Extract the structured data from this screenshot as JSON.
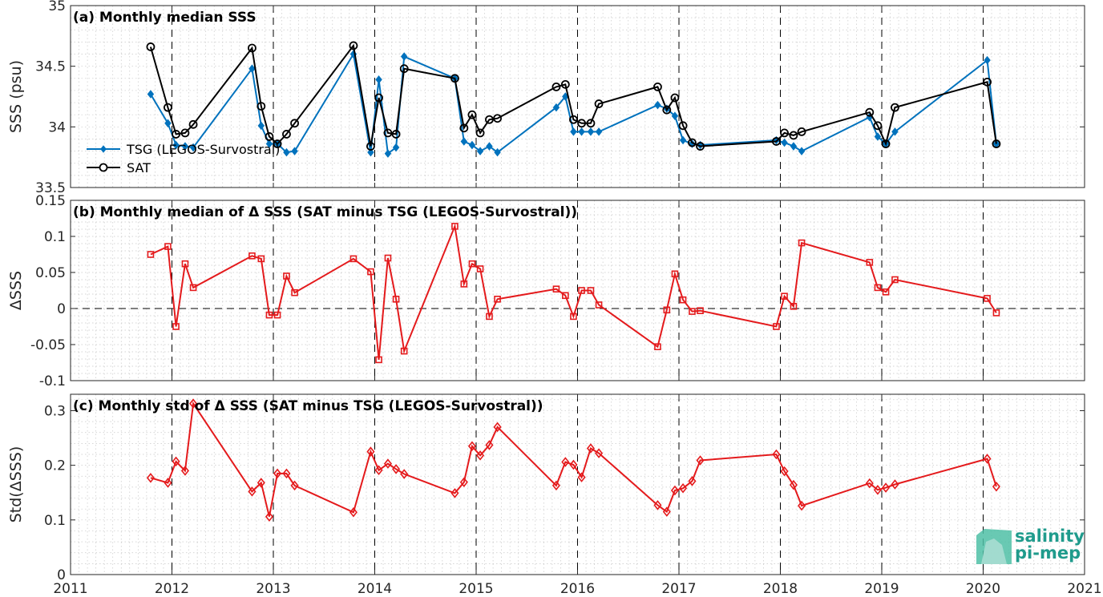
{
  "chart_data": [
    {
      "type": "line",
      "title": "(a) Monthly median SSS",
      "ylabel": "SSS (psu)",
      "xlim": [
        2011,
        2021
      ],
      "ylim": [
        33.5,
        35
      ],
      "yticks": [
        "33.5",
        "34",
        "34.5",
        "35"
      ],
      "xticks": [
        "2011",
        "2012",
        "2013",
        "2014",
        "2015",
        "2016",
        "2017",
        "2018",
        "2019",
        "2020",
        "2021"
      ],
      "legend": "bottom-left",
      "grid": true,
      "series": [
        {
          "name": "TSG (LEGOS-Survostral)",
          "color": "#0072bd",
          "marker": "diamond",
          "x": [
            2011.79,
            2011.96,
            2012.04,
            2012.13,
            2012.21,
            2012.79,
            2012.88,
            2012.96,
            2013.04,
            2013.13,
            2013.21,
            2013.79,
            2013.96,
            2014.04,
            2014.13,
            2014.21,
            2014.29,
            2014.79,
            2014.88,
            2014.96,
            2015.04,
            2015.13,
            2015.21,
            2015.79,
            2015.88,
            2015.96,
            2016.04,
            2016.13,
            2016.21,
            2016.79,
            2016.88,
            2016.96,
            2017.04,
            2017.13,
            2017.21,
            2017.96,
            2018.04,
            2018.13,
            2018.21,
            2018.88,
            2018.96,
            2019.04,
            2019.13,
            2020.04,
            2020.13
          ],
          "y": [
            34.27,
            34.03,
            33.85,
            33.84,
            33.83,
            34.48,
            34.01,
            33.86,
            33.86,
            33.79,
            33.8,
            34.6,
            33.79,
            34.39,
            33.78,
            33.83,
            34.58,
            34.4,
            33.88,
            33.85,
            33.8,
            33.84,
            33.79,
            34.16,
            34.25,
            33.96,
            33.96,
            33.96,
            33.96,
            34.18,
            34.15,
            34.09,
            33.89,
            33.86,
            33.85,
            33.89,
            33.87,
            33.84,
            33.8,
            34.08,
            33.92,
            33.86,
            33.96,
            34.55,
            33.86
          ]
        },
        {
          "name": "SAT",
          "color": "#000000",
          "marker": "circle",
          "x": [
            2011.79,
            2011.96,
            2012.04,
            2012.13,
            2012.21,
            2012.79,
            2012.88,
            2012.96,
            2013.04,
            2013.13,
            2013.21,
            2013.79,
            2013.96,
            2014.04,
            2014.13,
            2014.21,
            2014.29,
            2014.79,
            2014.88,
            2014.96,
            2015.04,
            2015.13,
            2015.21,
            2015.79,
            2015.88,
            2015.96,
            2016.04,
            2016.13,
            2016.21,
            2016.79,
            2016.88,
            2016.96,
            2017.04,
            2017.13,
            2017.21,
            2017.96,
            2018.04,
            2018.13,
            2018.21,
            2018.88,
            2018.96,
            2019.04,
            2019.13,
            2020.04,
            2020.13
          ],
          "y": [
            34.66,
            34.16,
            33.94,
            33.95,
            34.02,
            34.65,
            34.17,
            33.92,
            33.86,
            33.94,
            34.03,
            34.67,
            33.84,
            34.24,
            33.95,
            33.94,
            34.48,
            34.4,
            33.99,
            34.1,
            33.95,
            34.06,
            34.07,
            34.33,
            34.35,
            34.06,
            34.03,
            34.03,
            34.19,
            34.33,
            34.14,
            34.24,
            34.01,
            33.87,
            33.84,
            33.88,
            33.95,
            33.93,
            33.96,
            34.12,
            34.01,
            33.86,
            34.16,
            34.37,
            33.86
          ]
        }
      ]
    },
    {
      "type": "line",
      "title": "(b) Monthly median of Δ SSS (SAT minus TSG (LEGOS-Survostral))",
      "ylabel": "ΔSSS",
      "xlim": [
        2011,
        2021
      ],
      "ylim": [
        -0.1,
        0.15
      ],
      "yticks": [
        "-0.1",
        "-0.05",
        "0",
        "0.05",
        "0.1",
        "0.15"
      ],
      "xticks": [
        "2011",
        "2012",
        "2013",
        "2014",
        "2015",
        "2016",
        "2017",
        "2018",
        "2019",
        "2020",
        "2021"
      ],
      "grid": true,
      "zero_line": "dashed",
      "series": [
        {
          "color": "#e41a1c",
          "marker": "square",
          "x": [
            2011.79,
            2011.96,
            2012.04,
            2012.13,
            2012.21,
            2012.79,
            2012.88,
            2012.96,
            2013.04,
            2013.13,
            2013.21,
            2013.79,
            2013.96,
            2014.04,
            2014.13,
            2014.21,
            2014.29,
            2014.79,
            2014.88,
            2014.96,
            2015.04,
            2015.13,
            2015.21,
            2015.79,
            2015.88,
            2015.96,
            2016.04,
            2016.13,
            2016.21,
            2016.79,
            2016.88,
            2016.96,
            2017.04,
            2017.13,
            2017.21,
            2017.96,
            2018.04,
            2018.13,
            2018.21,
            2018.88,
            2018.96,
            2019.04,
            2019.13,
            2020.04,
            2020.13
          ],
          "y": [
            0.075,
            0.086,
            -0.025,
            0.062,
            0.029,
            0.073,
            0.069,
            -0.009,
            -0.009,
            0.045,
            0.022,
            0.069,
            0.051,
            -0.071,
            0.07,
            0.013,
            -0.059,
            0.114,
            0.034,
            0.062,
            0.055,
            -0.011,
            0.013,
            0.027,
            0.018,
            -0.011,
            0.025,
            0.025,
            0.005,
            -0.053,
            -0.002,
            0.048,
            0.012,
            -0.004,
            -0.003,
            -0.025,
            0.017,
            0.003,
            0.091,
            0.064,
            0.029,
            0.023,
            0.04,
            0.014,
            -0.006
          ]
        }
      ]
    },
    {
      "type": "line",
      "title": "(c) Monthly std of Δ SSS (SAT minus TSG (LEGOS-Survostral))",
      "ylabel": "Std(ΔSSS)",
      "xlim": [
        2011,
        2021
      ],
      "ylim": [
        0,
        0.33
      ],
      "yticks": [
        "0",
        "0.1",
        "0.2",
        "0.3"
      ],
      "xticks": [
        "2011",
        "2012",
        "2013",
        "2014",
        "2015",
        "2016",
        "2017",
        "2018",
        "2019",
        "2020",
        "2021"
      ],
      "grid": true,
      "series": [
        {
          "color": "#e41a1c",
          "marker": "diamond",
          "x": [
            2011.79,
            2011.96,
            2012.04,
            2012.13,
            2012.21,
            2012.79,
            2012.88,
            2012.96,
            2013.04,
            2013.13,
            2013.21,
            2013.79,
            2013.96,
            2014.04,
            2014.13,
            2014.21,
            2014.29,
            2014.79,
            2014.88,
            2014.96,
            2015.04,
            2015.13,
            2015.21,
            2015.79,
            2015.88,
            2015.96,
            2016.04,
            2016.13,
            2016.21,
            2016.79,
            2016.88,
            2016.96,
            2017.04,
            2017.13,
            2017.21,
            2017.96,
            2018.04,
            2018.13,
            2018.21,
            2018.88,
            2018.96,
            2019.04,
            2019.13,
            2020.04,
            2020.13
          ],
          "y": [
            0.177,
            0.168,
            0.207,
            0.19,
            0.313,
            0.152,
            0.168,
            0.106,
            0.185,
            0.185,
            0.163,
            0.114,
            0.225,
            0.191,
            0.203,
            0.193,
            0.184,
            0.149,
            0.169,
            0.235,
            0.218,
            0.237,
            0.27,
            0.163,
            0.206,
            0.201,
            0.178,
            0.231,
            0.222,
            0.127,
            0.115,
            0.154,
            0.158,
            0.171,
            0.209,
            0.22,
            0.189,
            0.164,
            0.126,
            0.167,
            0.155,
            0.159,
            0.165,
            0.212,
            0.161
          ]
        }
      ]
    }
  ],
  "logo": {
    "line1": "salinity",
    "line2": "pi-mep",
    "color": "#1f9b8c"
  }
}
